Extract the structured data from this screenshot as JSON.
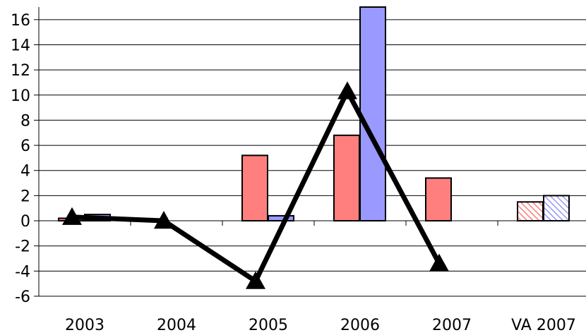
{
  "chart_data": {
    "type": "bar",
    "categories": [
      "2003",
      "2004",
      "2005",
      "2006",
      "2007",
      "VA 2007"
    ],
    "series": [
      {
        "kind": "bar",
        "color": "#ff7f7f",
        "values": [
          0.2,
          null,
          5.2,
          6.8,
          3.4,
          1.5
        ],
        "hatched_categories": [
          "VA 2007"
        ]
      },
      {
        "kind": "bar",
        "color": "#9999ff",
        "values": [
          0.5,
          null,
          0.4,
          17.0,
          null,
          2.0
        ],
        "hatched_categories": [
          "VA 2007"
        ]
      },
      {
        "kind": "line",
        "color": "#000000",
        "marker": "triangle",
        "values": [
          0.3,
          0.0,
          -4.8,
          10.3,
          -3.4,
          null
        ]
      }
    ],
    "ylim": [
      -6,
      17
    ],
    "yticks": [
      16,
      14,
      12,
      10,
      8,
      6,
      4,
      2,
      0,
      -2,
      -4,
      -6
    ],
    "ytick_labels": [
      "16",
      "14",
      "12",
      "10",
      "8",
      "6",
      "4",
      "2",
      "0",
      "-2",
      "-4",
      "-6"
    ],
    "grid": true,
    "legend": "none",
    "title": "",
    "xlabel": "",
    "ylabel": ""
  }
}
